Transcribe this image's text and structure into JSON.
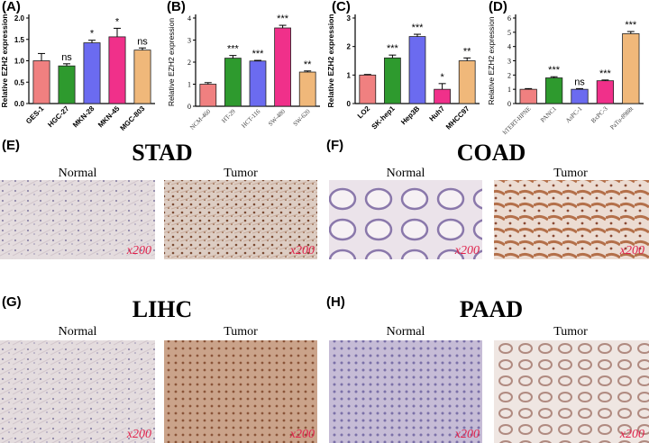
{
  "chart_data": [
    {
      "type": "bar",
      "panel_label": "(A)",
      "y_label": "Relative EZH2 expression",
      "categories": [
        "GES-1",
        "HGC-27",
        "MKN-28",
        "MKN-45",
        "MGC-803"
      ],
      "values": [
        1.0,
        0.88,
        1.42,
        1.56,
        1.25
      ],
      "errors": [
        0.17,
        0.05,
        0.06,
        0.2,
        0.05
      ],
      "annotations": [
        null,
        "ns",
        "*",
        "*",
        "ns"
      ],
      "colors": [
        "#f08080",
        "#2e9a2e",
        "#6b6bf0",
        "#f0308a",
        "#f0b87a"
      ],
      "ylim": [
        0,
        2
      ],
      "yticks": [
        {
          "value": 0,
          "label": "0.0"
        },
        {
          "value": 0.5,
          "label": "0.5"
        },
        {
          "value": 1,
          "label": "1.0"
        },
        {
          "value": 1.5,
          "label": "1.5"
        },
        {
          "value": 2,
          "label": "2.0"
        }
      ]
    },
    {
      "type": "bar",
      "panel_label": "(B)",
      "y_label": "Relative EZH2 expression",
      "categories": [
        "NCM-460",
        "HT-29",
        "HCT-116",
        "SW-480",
        "SW-620"
      ],
      "values": [
        1.0,
        2.18,
        2.05,
        3.55,
        1.55
      ],
      "errors": [
        0.07,
        0.12,
        0.03,
        0.12,
        0.05
      ],
      "annotations": [
        null,
        "***",
        "***",
        "***",
        "**"
      ],
      "colors": [
        "#f08080",
        "#2e9a2e",
        "#6b6bf0",
        "#f0308a",
        "#f0b87a"
      ],
      "ylim": [
        0,
        4
      ],
      "yticks": [
        0,
        1,
        2,
        3,
        4
      ]
    },
    {
      "type": "bar",
      "panel_label": "(C)",
      "y_label": "Relative EZH2 expression",
      "categories": [
        "LO2",
        "SK-hep1",
        "Hep3B",
        "Huh7",
        "MHCC97"
      ],
      "values": [
        1.0,
        1.6,
        2.35,
        0.5,
        1.5
      ],
      "errors": [
        0.02,
        0.1,
        0.08,
        0.2,
        0.1
      ],
      "annotations": [
        null,
        "***",
        "***",
        "*",
        "**"
      ],
      "colors": [
        "#f08080",
        "#2e9a2e",
        "#6b6bf0",
        "#f0308a",
        "#f0b87a"
      ],
      "ylim": [
        0,
        3
      ],
      "yticks": [
        0,
        1,
        2,
        3
      ]
    },
    {
      "type": "bar",
      "panel_label": "(D)",
      "y_label": "Relative EZH2 expression",
      "categories": [
        "hTERT-HPNE",
        "PANC1",
        "AsPC-1",
        "BxPC-3",
        "PaTu-8988t"
      ],
      "values": [
        1.0,
        1.8,
        1.0,
        1.6,
        4.9
      ],
      "errors": [
        0.05,
        0.08,
        0.05,
        0.05,
        0.15
      ],
      "annotations": [
        null,
        "***",
        "ns",
        "***",
        "***"
      ],
      "colors": [
        "#f08080",
        "#2e9a2e",
        "#6b6bf0",
        "#f0308a",
        "#f0b87a"
      ],
      "ylim": [
        0,
        6
      ],
      "yticks": [
        0,
        1,
        2,
        3,
        4,
        5,
        6
      ]
    }
  ],
  "panels": [
    {
      "label": "(E)",
      "title": "STAD",
      "images": [
        {
          "label": "Normal",
          "magnification": "x200"
        },
        {
          "label": "Tumor",
          "magnification": "x200"
        }
      ]
    },
    {
      "label": "(F)",
      "title": "COAD",
      "images": [
        {
          "label": "Normal",
          "magnification": "x200"
        },
        {
          "label": "Tumor",
          "magnification": "x200"
        }
      ]
    },
    {
      "label": "(G)",
      "title": "LIHC",
      "images": [
        {
          "label": "Normal",
          "magnification": "x200"
        },
        {
          "label": "Tumor",
          "magnification": "x200"
        }
      ]
    },
    {
      "label": "(H)",
      "title": "PAAD",
      "images": [
        {
          "label": "Normal",
          "magnification": "x200"
        },
        {
          "label": "Tumor",
          "magnification": "x200"
        }
      ]
    }
  ]
}
